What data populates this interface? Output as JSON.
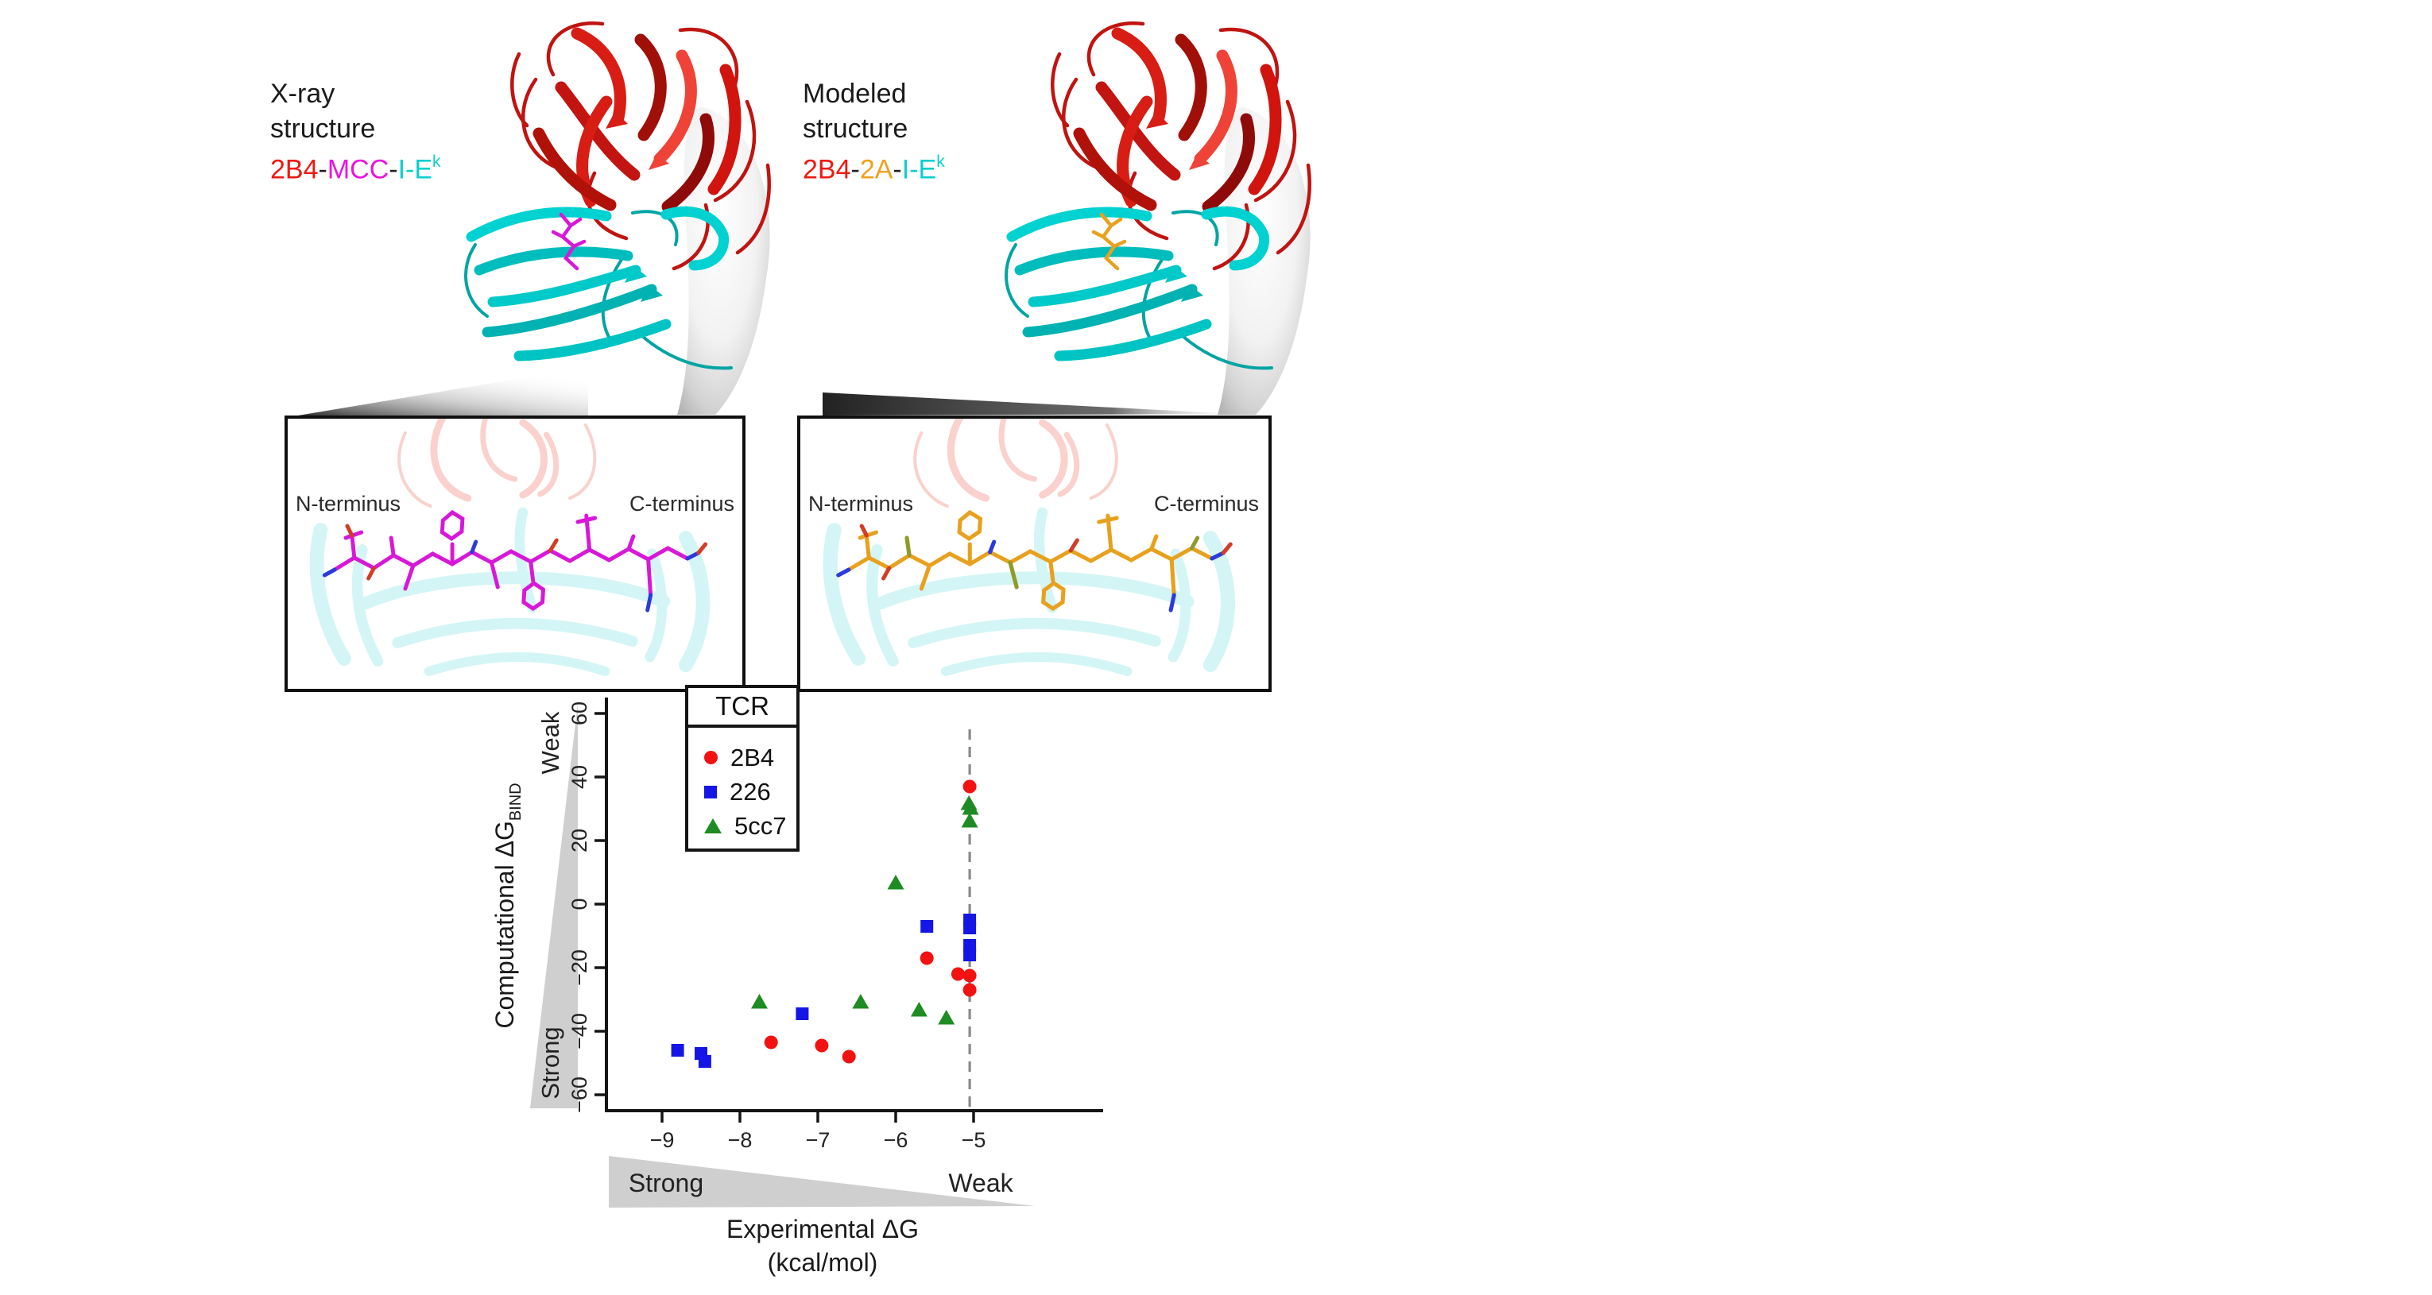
{
  "figure": {
    "panels": [
      {
        "id": "xray",
        "title_line1": "X-ray",
        "title_line2": "structure",
        "molecule": [
          {
            "text": "2B4",
            "color": "#ee1a12"
          },
          {
            "text": "-",
            "color": "#222222"
          },
          {
            "text": "MCC",
            "color": "#e915dd"
          },
          {
            "text": "-",
            "color": "#222222"
          },
          {
            "text": "I-E",
            "color": "#0ccfcf"
          },
          {
            "text": "k",
            "color": "#0ccfcf",
            "sup": true
          }
        ],
        "peptide_color": "#d818d8",
        "inset": {
          "left_label": "N-terminus",
          "right_label": "C-terminus"
        }
      },
      {
        "id": "modeled",
        "title_line1": "Modeled",
        "title_line2": "structure",
        "molecule": [
          {
            "text": "2B4",
            "color": "#ee1a12"
          },
          {
            "text": "-",
            "color": "#222222"
          },
          {
            "text": "2A",
            "color": "#f0a11f"
          },
          {
            "text": "-",
            "color": "#222222"
          },
          {
            "text": "I-E",
            "color": "#0ccfcf"
          },
          {
            "text": "k",
            "color": "#0ccfcf",
            "sup": true
          }
        ],
        "peptide_color": "#e8a11e",
        "inset": {
          "left_label": "N-terminus",
          "right_label": "C-terminus"
        }
      }
    ]
  },
  "chart": {
    "legend": {
      "title": "TCR"
    },
    "y_axis": {
      "title_main": "Computational ΔG",
      "title_sub": "BIND",
      "weak_label": "Weak",
      "strong_label": "Strong"
    },
    "x_axis": {
      "title_line1": "Experimental ΔG",
      "title_line2": "(kcal/mol)",
      "strong_label": "Strong",
      "weak_label": "Weak"
    }
  },
  "chart_data": {
    "type": "scatter",
    "title": "",
    "xlabel": "Experimental ΔG (kcal/mol)",
    "ylabel": "Computational ΔG_BIND",
    "xlim": [
      -9.35,
      -4.55
    ],
    "ylim": [
      -65,
      65
    ],
    "x_ticks": [
      -9,
      -8,
      -7,
      -6,
      -5
    ],
    "y_ticks": [
      60,
      40,
      20,
      0,
      -20,
      -40,
      -60
    ],
    "grid": false,
    "legend_title": "TCR",
    "legend_position": "top-left",
    "dashed_line_x": -5.05,
    "series": [
      {
        "name": "2B4",
        "marker": "circle",
        "color": "#f21212",
        "points": [
          [
            -7.6,
            -43.5
          ],
          [
            -6.95,
            -44.5
          ],
          [
            -6.6,
            -48
          ],
          [
            -5.6,
            -17
          ],
          [
            -5.2,
            -22
          ],
          [
            -5.05,
            -22.5
          ],
          [
            -5.05,
            -27
          ],
          [
            -5.05,
            37
          ]
        ]
      },
      {
        "name": "226",
        "marker": "square",
        "color": "#1515e6",
        "points": [
          [
            -8.8,
            -46
          ],
          [
            -8.5,
            -47
          ],
          [
            -8.45,
            -49.5
          ],
          [
            -7.2,
            -34.5
          ],
          [
            -5.6,
            -7
          ],
          [
            -5.05,
            -5
          ],
          [
            -5.05,
            -7.5
          ],
          [
            -5.05,
            -13
          ],
          [
            -5.05,
            -16
          ]
        ]
      },
      {
        "name": "5cc7",
        "marker": "triangle",
        "color": "#1e8c22",
        "points": [
          [
            -7.75,
            -31
          ],
          [
            -6.45,
            -31
          ],
          [
            -6.0,
            6.5
          ],
          [
            -5.7,
            -33.5
          ],
          [
            -5.35,
            -36
          ],
          [
            -5.06,
            31.5
          ],
          [
            -5.04,
            30
          ],
          [
            -5.05,
            26
          ]
        ]
      }
    ]
  }
}
